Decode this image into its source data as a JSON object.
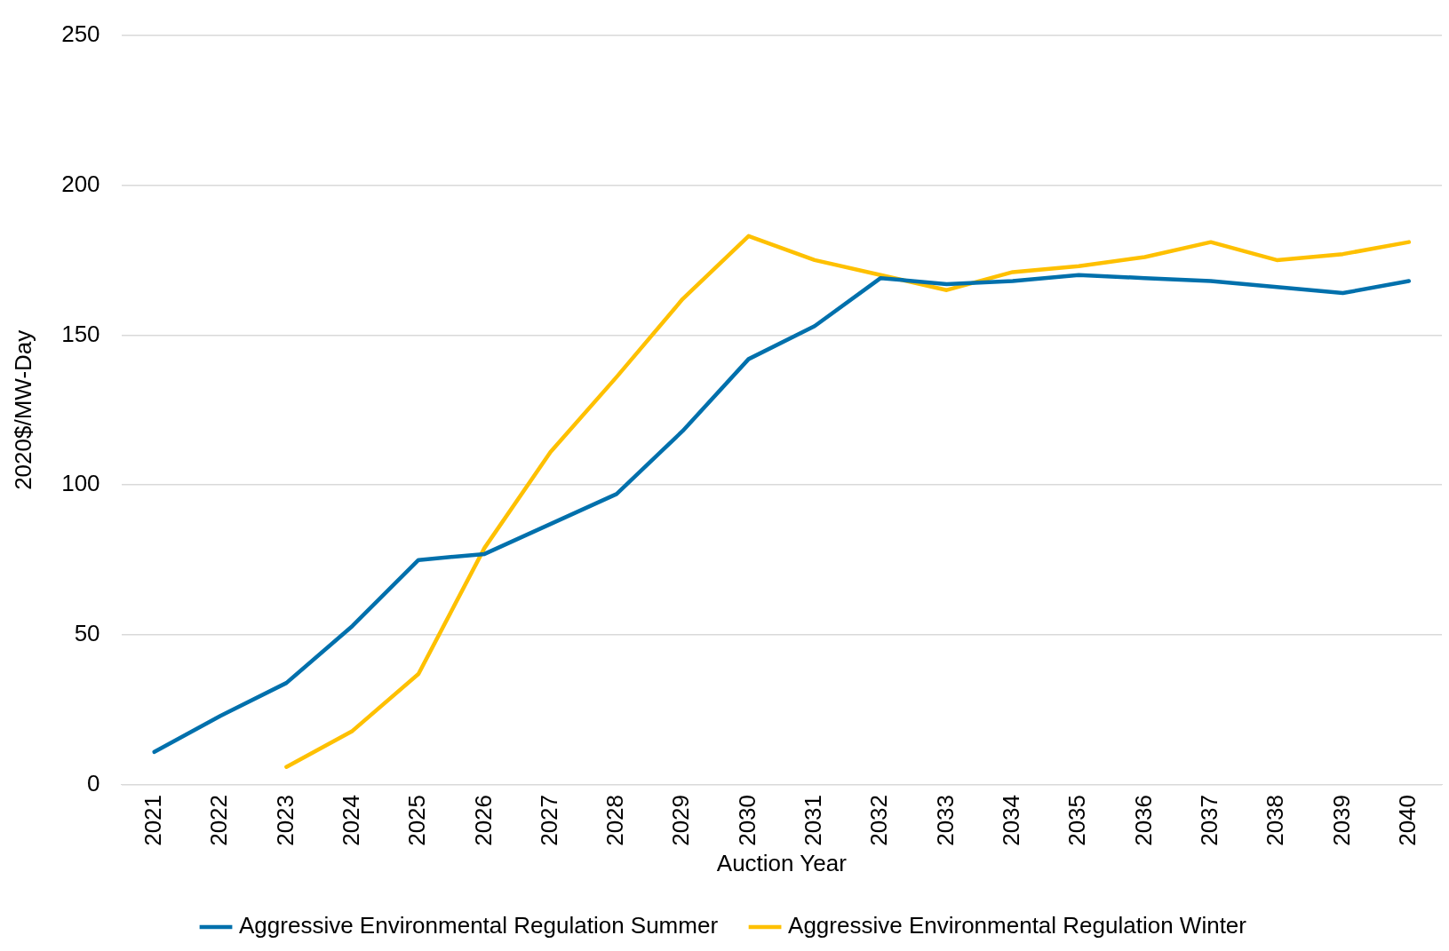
{
  "chart_data": {
    "type": "line",
    "xlabel": "Auction Year",
    "ylabel": "2020$/MW-Day",
    "categories": [
      "2021",
      "2022",
      "2023",
      "2024",
      "2025",
      "2026",
      "2027",
      "2028",
      "2029",
      "2030",
      "2031",
      "2032",
      "2033",
      "2034",
      "2035",
      "2036",
      "2037",
      "2038",
      "2039",
      "2040"
    ],
    "series": [
      {
        "name": "Aggressive Environmental Regulation Summer",
        "color": "#0070ac",
        "values": [
          11,
          23,
          34,
          53,
          75,
          77,
          87,
          97,
          118,
          142,
          153,
          169,
          167,
          168,
          170,
          169,
          168,
          166,
          164,
          168
        ]
      },
      {
        "name": "Aggressive Environmental Regulation Winter",
        "color": "#fec000",
        "values": [
          null,
          null,
          6,
          18,
          37,
          79,
          111,
          136,
          162,
          183,
          175,
          170,
          165,
          171,
          173,
          176,
          181,
          175,
          177,
          181
        ]
      }
    ],
    "ylim": [
      0,
      250
    ],
    "yticks": [
      0,
      50,
      100,
      150,
      200,
      250
    ],
    "grid": "y",
    "legend": "bottom",
    "marker": "none",
    "line_style": "solid"
  }
}
